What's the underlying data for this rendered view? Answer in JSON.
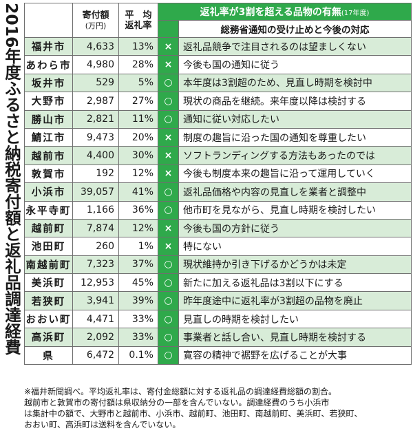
{
  "side_title": "2016年度ふるさと納税寄付額と返礼品調達経費",
  "header": {
    "main": "返礼率が3割を超える品物の有無",
    "main_suffix": "(17年度)",
    "sub": "総務省通知の受け止めと今後の対応",
    "col_amount": "寄付額",
    "col_amount_unit": "(万円)",
    "col_rate_1": "平　均",
    "col_rate_2": "返礼率"
  },
  "rows": [
    {
      "city": "福井市",
      "amount": "4,633",
      "rate": "13%",
      "mark": "×",
      "response": "返礼品競争で注目されるのは望ましくない"
    },
    {
      "city": "あわら市",
      "amount": "4,980",
      "rate": "28%",
      "mark": "×",
      "response": "今後も国の通知に従う"
    },
    {
      "city": "坂井市",
      "amount": "529",
      "rate": "5%",
      "mark": "○",
      "response": "本年度は3割超のため、見直し時期を検討中"
    },
    {
      "city": "大野市",
      "amount": "2,987",
      "rate": "27%",
      "mark": "○",
      "response": "現状の商品を継続。来年度以降は検討する"
    },
    {
      "city": "勝山市",
      "amount": "2,821",
      "rate": "11%",
      "mark": "○",
      "response": "通知に従い対応したい"
    },
    {
      "city": "鯖江市",
      "amount": "9,473",
      "rate": "20%",
      "mark": "×",
      "response": "制度の趣旨に沿った国の通知を尊重したい"
    },
    {
      "city": "越前市",
      "amount": "4,400",
      "rate": "30%",
      "mark": "×",
      "response": "ソフトランディングする方法もあったのでは"
    },
    {
      "city": "敦賀市",
      "amount": "192",
      "rate": "12%",
      "mark": "×",
      "response": "今後も制度本来の趣旨に沿って運用していく"
    },
    {
      "city": "小浜市",
      "amount": "39,057",
      "rate": "41%",
      "mark": "○",
      "response": "返礼品価格や内容の見直しを業者と調整中"
    },
    {
      "city": "永平寺町",
      "amount": "1,166",
      "rate": "36%",
      "mark": "○",
      "response": "他市町を見ながら、見直し時期を検討したい"
    },
    {
      "city": "越前町",
      "amount": "7,874",
      "rate": "12%",
      "mark": "×",
      "response": "今後も国の方針に従う"
    },
    {
      "city": "池田町",
      "amount": "260",
      "rate": "1%",
      "mark": "×",
      "response": "特にない"
    },
    {
      "city": "南越前町",
      "amount": "7,323",
      "rate": "37%",
      "mark": "○",
      "response": "現状維持か引き下げるかどうかは未定"
    },
    {
      "city": "美浜町",
      "amount": "12,953",
      "rate": "45%",
      "mark": "○",
      "response": "新たに加える返礼品は3割以下にする"
    },
    {
      "city": "若狭町",
      "amount": "3,941",
      "rate": "39%",
      "mark": "○",
      "response": "昨年度途中に返礼率が3割超の品物を廃止"
    },
    {
      "city": "おおい町",
      "amount": "4,471",
      "rate": "33%",
      "mark": "○",
      "response": "見直しの時期を検討したい"
    },
    {
      "city": "高浜町",
      "amount": "2,092",
      "rate": "33%",
      "mark": "○",
      "response": "事業者と話し合い、見直し時期を検討する"
    },
    {
      "city": "県",
      "amount": "6,472",
      "rate": "0.1%",
      "mark": "○",
      "response": "寛容の精神で裾野を広げることが大事"
    }
  ],
  "note": "※福井新聞調べ。平均返礼率は、寄付金総額に対する返礼品の調達経費総額の割合。\n越前市と敦賀市の寄付額は県収納分の一部を含んでいない。調達経費のうち小浜市\nは集計中の額で、大野市と越前市、小浜市、越前町、池田町、南越前町、美浜町、若狭町、\nおおい町、高浜町は送料を含んでいない。",
  "colors": {
    "green": "#2fa94b",
    "light_green": "#d8ecd8"
  }
}
